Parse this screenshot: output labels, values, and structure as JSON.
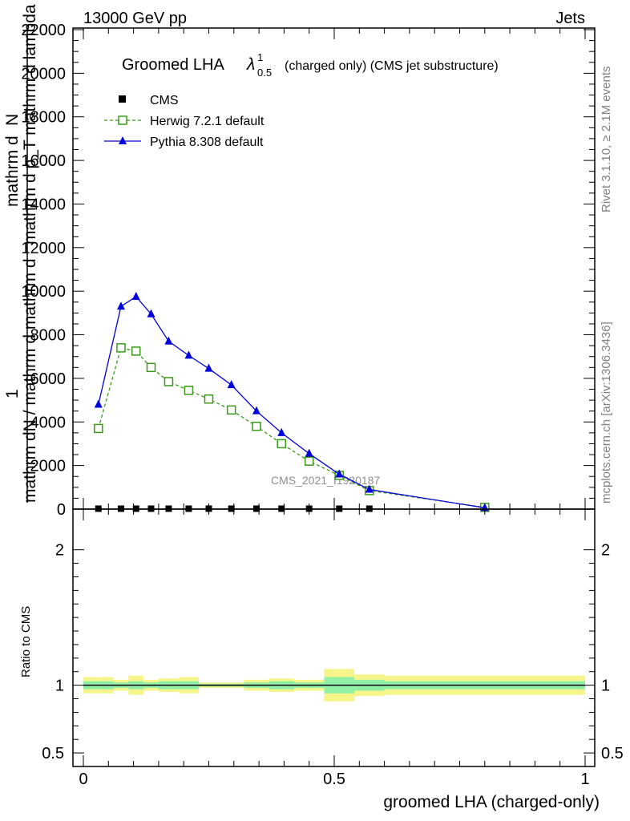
{
  "header": {
    "left": "13000 GeV pp",
    "right": "Jets"
  },
  "side_labels": {
    "rivet": "Rivet 3.1.10, ≥ 2.1M events",
    "mcplots": "mcplots.cern.ch [arXiv:1306.3436]"
  },
  "watermark": "CMS_2021_I1920187",
  "chart_data": [
    {
      "type": "line",
      "title": "Groomed LHA λ¹₀.₅ (charged only) (CMS jet substructure)",
      "title_main": "Groomed LHA ",
      "title_lambda": "λ",
      "title_sup": "1",
      "title_sub": "0.5",
      "title_rest": "(charged only) (CMS jet substructure)",
      "ylabel_top_num": "mathrm d",
      "ylabel_top_num2": "N",
      "ylabel_top_den": "mathrm d p_T mathrm d lambda",
      "ylabel_one": "1",
      "ylabel_main": "mathrm dN / mathrm d mathrm d",
      "xlim": [
        0,
        1
      ],
      "ylim": [
        0,
        22000
      ],
      "yticks": [
        0,
        2000,
        4000,
        6000,
        8000,
        10000,
        12000,
        14000,
        16000,
        18000,
        20000,
        22000
      ],
      "ytick_labels": [
        "0",
        "2000",
        "4000",
        "6000",
        "8000",
        "10000",
        "12000",
        "14000",
        "16000",
        "18000",
        "20000",
        "22000"
      ],
      "legend_position": "top-left",
      "series": [
        {
          "name": "CMS",
          "color": "#000000",
          "marker": "filled-square",
          "x": [
            0.03,
            0.075,
            0.105,
            0.135,
            0.17,
            0.21,
            0.25,
            0.295,
            0.345,
            0.395,
            0.45,
            0.51,
            0.57
          ],
          "y": [
            20,
            20,
            20,
            20,
            20,
            20,
            20,
            20,
            20,
            20,
            20,
            20,
            20
          ]
        },
        {
          "name": "Herwig 7.2.1 default",
          "color": "#3a9a1a",
          "marker": "open-square",
          "dash": "dashed",
          "x": [
            0.03,
            0.075,
            0.105,
            0.135,
            0.17,
            0.21,
            0.25,
            0.295,
            0.345,
            0.395,
            0.45,
            0.51,
            0.57,
            0.8
          ],
          "y": [
            3700,
            7400,
            7250,
            6500,
            5850,
            5450,
            5050,
            4550,
            3800,
            3000,
            2200,
            1550,
            850,
            80
          ]
        },
        {
          "name": "Pythia 8.308 default",
          "color": "#0000dd",
          "marker": "filled-triangle",
          "dash": "solid",
          "x": [
            0.03,
            0.075,
            0.105,
            0.135,
            0.17,
            0.21,
            0.25,
            0.295,
            0.345,
            0.395,
            0.45,
            0.51,
            0.57,
            0.8
          ],
          "y": [
            4800,
            9300,
            9750,
            8950,
            7700,
            7050,
            6450,
            5700,
            4500,
            3500,
            2550,
            1600,
            900,
            60
          ]
        }
      ]
    },
    {
      "type": "line",
      "xlabel": "groomed LHA (charged-only)",
      "ylabel": "Ratio to CMS",
      "xlim": [
        0,
        1
      ],
      "ylim": [
        0.4,
        2.3
      ],
      "xticks": [
        0,
        0.5,
        1
      ],
      "xtick_labels": [
        "0",
        "0.5",
        "1"
      ],
      "yticks": [
        0.5,
        1,
        2
      ],
      "ytick_labels": [
        "0.5",
        "1",
        "2"
      ],
      "ratio_line": 1,
      "uncertainty_bands": [
        {
          "x0": 0.0,
          "x1": 0.06,
          "inner": 0.03,
          "outer": 0.06
        },
        {
          "x0": 0.06,
          "x1": 0.09,
          "inner": 0.02,
          "outer": 0.04
        },
        {
          "x0": 0.09,
          "x1": 0.12,
          "inner": 0.03,
          "outer": 0.07
        },
        {
          "x0": 0.12,
          "x1": 0.15,
          "inner": 0.02,
          "outer": 0.04
        },
        {
          "x0": 0.15,
          "x1": 0.19,
          "inner": 0.03,
          "outer": 0.05
        },
        {
          "x0": 0.19,
          "x1": 0.23,
          "inner": 0.03,
          "outer": 0.06
        },
        {
          "x0": 0.23,
          "x1": 0.27,
          "inner": 0.01,
          "outer": 0.02
        },
        {
          "x0": 0.27,
          "x1": 0.32,
          "inner": 0.01,
          "outer": 0.02
        },
        {
          "x0": 0.32,
          "x1": 0.37,
          "inner": 0.02,
          "outer": 0.04
        },
        {
          "x0": 0.37,
          "x1": 0.42,
          "inner": 0.03,
          "outer": 0.05
        },
        {
          "x0": 0.42,
          "x1": 0.48,
          "inner": 0.02,
          "outer": 0.04
        },
        {
          "x0": 0.48,
          "x1": 0.54,
          "inner": 0.06,
          "outer": 0.12
        },
        {
          "x0": 0.54,
          "x1": 0.6,
          "inner": 0.04,
          "outer": 0.08
        },
        {
          "x0": 0.6,
          "x1": 1.0,
          "inner": 0.03,
          "outer": 0.07
        }
      ]
    }
  ]
}
